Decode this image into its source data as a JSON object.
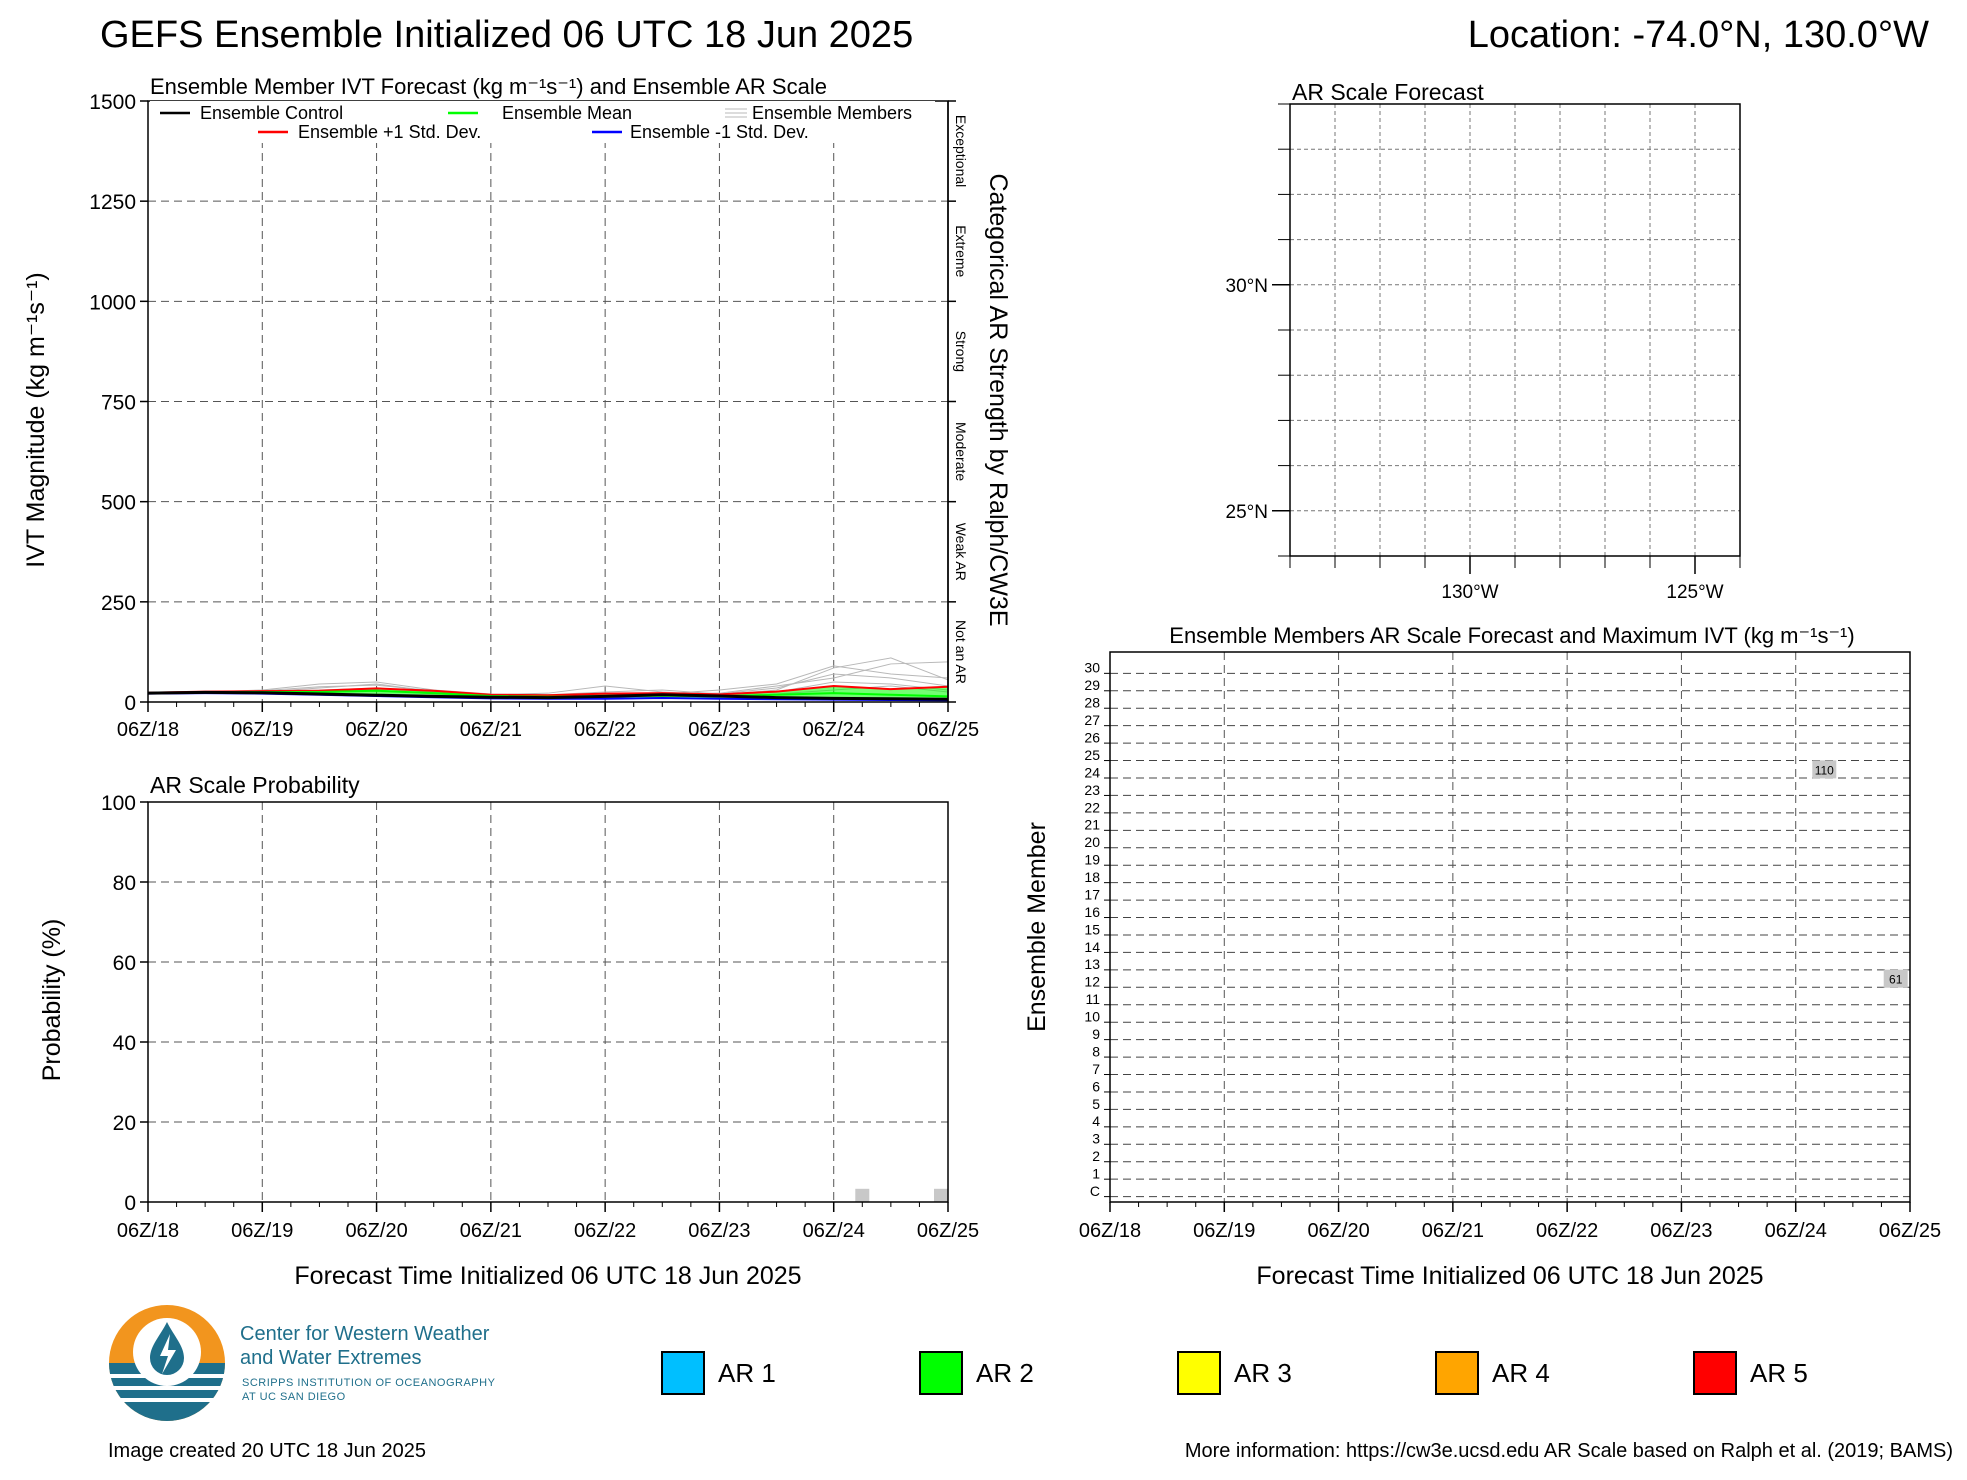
{
  "header": {
    "title": "GEFS Ensemble Initialized 06 UTC 18 Jun 2025",
    "location": "Location: -74.0°N, 130.0°W"
  },
  "footer": {
    "created": "Image created 20 UTC 18 Jun 2025",
    "more_info": "More information: https://cw3e.ucsd.edu AR Scale based on Ralph et al. (2019; BAMS)"
  },
  "logo": {
    "line1": "Center for Western Weather",
    "line2": "and Water Extremes",
    "line3": "SCRIPPS INSTITUTION OF OCEANOGRAPHY",
    "line4": "AT UC SAN DIEGO",
    "colors": {
      "orange": "#f2951e",
      "blue": "#1f6f8b"
    }
  },
  "ar_legend": [
    {
      "label": "AR 1",
      "color": "#00bfff"
    },
    {
      "label": "AR 2",
      "color": "#00ff00"
    },
    {
      "label": "AR 3",
      "color": "#ffff00"
    },
    {
      "label": "AR 4",
      "color": "#ffa500"
    },
    {
      "label": "AR 5",
      "color": "#ff0000"
    }
  ],
  "chart_data": [
    {
      "id": "ivt",
      "type": "line",
      "title": "Ensemble Member IVT Forecast (kg m⁻¹s⁻¹) and Ensemble AR Scale",
      "ylabel": "IVT Magnitude (kg m⁻¹s⁻¹)",
      "right_label": "Categorical AR Strength by Ralph/CW3E",
      "categories_right": [
        "Not an AR",
        "Weak AR",
        "Moderate",
        "Strong",
        "Extreme",
        "Exceptional"
      ],
      "x_ticks": [
        "06Z/18",
        "06Z/19",
        "06Z/20",
        "06Z/21",
        "06Z/22",
        "06Z/23",
        "06Z/24",
        "06Z/25"
      ],
      "xlim": [
        0,
        168
      ],
      "ylim": [
        0,
        1500
      ],
      "y_ticks": [
        0,
        250,
        500,
        750,
        1000,
        1250,
        1500
      ],
      "grid": true,
      "legend": [
        "Ensemble Control",
        "Ensemble Mean",
        "Ensemble Members",
        "Ensemble +1 Std. Dev.",
        "Ensemble -1 Std. Dev."
      ],
      "x": [
        0,
        12,
        24,
        36,
        48,
        60,
        72,
        84,
        96,
        108,
        120,
        132,
        144,
        156,
        168
      ],
      "series": [
        {
          "name": "Ensemble Control",
          "color": "#000000",
          "values": [
            22,
            24,
            23,
            20,
            17,
            14,
            12,
            11,
            14,
            18,
            15,
            11,
            9,
            8,
            7
          ]
        },
        {
          "name": "Ensemble Mean",
          "color": "#00ff00",
          "values": [
            22,
            24,
            25,
            25,
            28,
            22,
            15,
            13,
            14,
            16,
            14,
            18,
            22,
            18,
            14
          ]
        },
        {
          "name": "Ensemble +1 Std. Dev.",
          "color": "#ff0000",
          "values": [
            23,
            26,
            27,
            28,
            34,
            28,
            18,
            17,
            21,
            22,
            19,
            26,
            40,
            32,
            38
          ]
        },
        {
          "name": "Ensemble -1 Std. Dev.",
          "color": "#0000ff",
          "values": [
            21,
            22,
            21,
            18,
            15,
            12,
            9,
            8,
            8,
            10,
            8,
            7,
            6,
            5,
            4
          ]
        }
      ],
      "members": [
        [
          22,
          25,
          30,
          45,
          50,
          30,
          20,
          18,
          25,
          30,
          20,
          35,
          70,
          60,
          40
        ],
        [
          22,
          24,
          28,
          38,
          42,
          28,
          18,
          22,
          40,
          25,
          18,
          30,
          85,
          110,
          55
        ],
        [
          23,
          25,
          26,
          30,
          35,
          25,
          16,
          15,
          18,
          20,
          22,
          40,
          60,
          95,
          100
        ],
        [
          21,
          23,
          24,
          28,
          30,
          20,
          14,
          12,
          15,
          18,
          16,
          25,
          50,
          45,
          30
        ],
        [
          22,
          24,
          25,
          35,
          45,
          26,
          15,
          14,
          16,
          20,
          30,
          45,
          90,
          70,
          60
        ],
        [
          22,
          23,
          24,
          26,
          28,
          22,
          17,
          16,
          14,
          15,
          14,
          20,
          30,
          40,
          25
        ]
      ]
    },
    {
      "id": "prob",
      "type": "bar",
      "title": "AR Scale Probability",
      "xlabel": "Forecast Time Initialized 06 UTC 18 Jun 2025",
      "ylabel": "Probability (%)",
      "x_ticks": [
        "06Z/18",
        "06Z/19",
        "06Z/20",
        "06Z/21",
        "06Z/22",
        "06Z/23",
        "06Z/24",
        "06Z/25"
      ],
      "xlim": [
        0,
        168
      ],
      "ylim": [
        0,
        100
      ],
      "y_ticks": [
        0,
        20,
        40,
        60,
        80,
        100
      ],
      "grid": true,
      "bars": [
        {
          "x": 150,
          "value": 3.3,
          "color": "#c8c8c8"
        },
        {
          "x": 168,
          "value": 3.3,
          "color": "#c8c8c8"
        }
      ]
    },
    {
      "id": "map",
      "type": "map",
      "title": "AR Scale Forecast",
      "lat_ticks": [
        "30°N",
        "25°N"
      ],
      "lon_ticks": [
        "130°W",
        "125°W"
      ],
      "lat_values": [
        30,
        25
      ],
      "lon_values": [
        -130,
        -125
      ],
      "lat_range": [
        24,
        34
      ],
      "lon_range": [
        -134,
        -124
      ]
    },
    {
      "id": "members",
      "type": "heatmap",
      "title": "Ensemble Members AR Scale Forecast and Maximum IVT (kg m⁻¹s⁻¹)",
      "xlabel": "Forecast Time Initialized 06 UTC 18 Jun 2025",
      "ylabel": "Ensemble Member",
      "x_ticks": [
        "06Z/18",
        "06Z/19",
        "06Z/20",
        "06Z/21",
        "06Z/22",
        "06Z/23",
        "06Z/24",
        "06Z/25"
      ],
      "xlim": [
        0,
        168
      ],
      "rows": [
        "C",
        "1",
        "2",
        "3",
        "4",
        "5",
        "6",
        "7",
        "8",
        "9",
        "10",
        "11",
        "12",
        "13",
        "14",
        "15",
        "16",
        "17",
        "18",
        "19",
        "20",
        "21",
        "22",
        "23",
        "24",
        "25",
        "26",
        "27",
        "28",
        "29",
        "30"
      ],
      "cells": [
        {
          "member": "24",
          "x": 150,
          "label": "110",
          "color": "#c8c8c8"
        },
        {
          "member": "12",
          "x": 165,
          "label": "61",
          "color": "#c8c8c8"
        }
      ]
    }
  ]
}
